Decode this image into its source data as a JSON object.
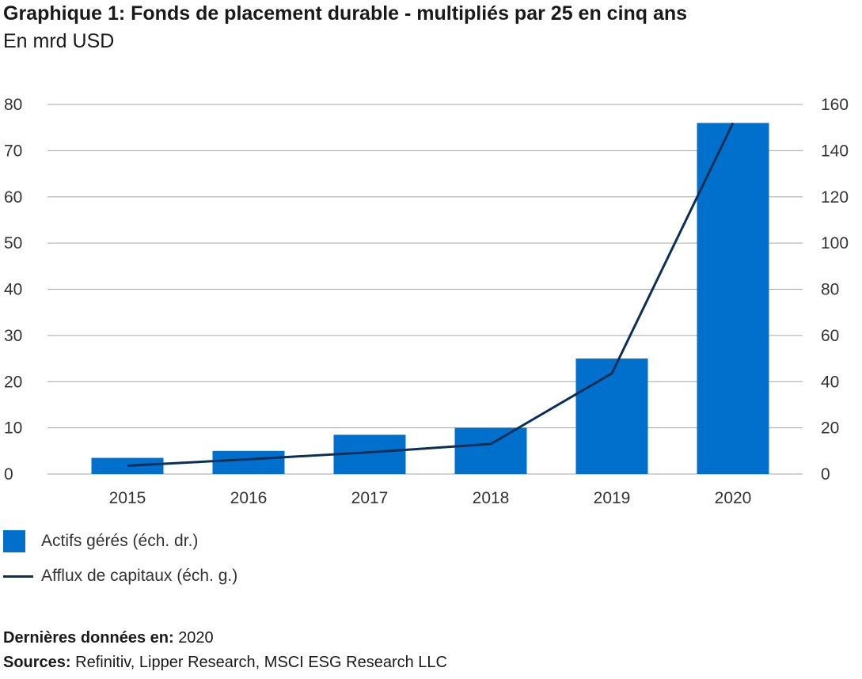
{
  "header": {
    "title": "Graphique 1: Fonds de placement durable - multipliés par 25 en cinq ans",
    "subtitle": "En mrd USD"
  },
  "legend": {
    "bars_label": "Actifs gérés (éch. dr.)",
    "line_label": "Afflux de capitaux (éch. g.)"
  },
  "footer": {
    "last_data_label": "Dernières données en:",
    "last_data_value": "2020",
    "sources_label": "Sources:",
    "sources_value": "Refinitiv, Lipper Research, MSCI ESG Research LLC"
  },
  "colors": {
    "bar": "#0070cc",
    "line": "#0b2f55",
    "grid": "#a6a6a6"
  },
  "chart_data": {
    "type": "bar",
    "categories": [
      "2015",
      "2016",
      "2017",
      "2018",
      "2019",
      "2020"
    ],
    "series": [
      {
        "name": "Actifs gérés (éch. dr.)",
        "type": "bar",
        "axis": "right",
        "values": [
          7,
          10,
          17,
          20,
          50,
          152
        ]
      },
      {
        "name": "Afflux de capitaux (éch. g.)",
        "type": "line",
        "axis": "left",
        "values": [
          1.8,
          3.2,
          4.7,
          6.5,
          21.8,
          76
        ]
      }
    ],
    "left_axis": {
      "ylim": [
        0,
        80
      ],
      "ticks": [
        "0",
        "10",
        "20",
        "30",
        "40",
        "50",
        "60",
        "70",
        "80"
      ]
    },
    "right_axis": {
      "ylim": [
        0,
        160
      ],
      "ticks": [
        "0",
        "20",
        "40",
        "60",
        "80",
        "100",
        "120",
        "140",
        "160"
      ]
    },
    "grid": true,
    "legend_position": "bottom-left"
  }
}
